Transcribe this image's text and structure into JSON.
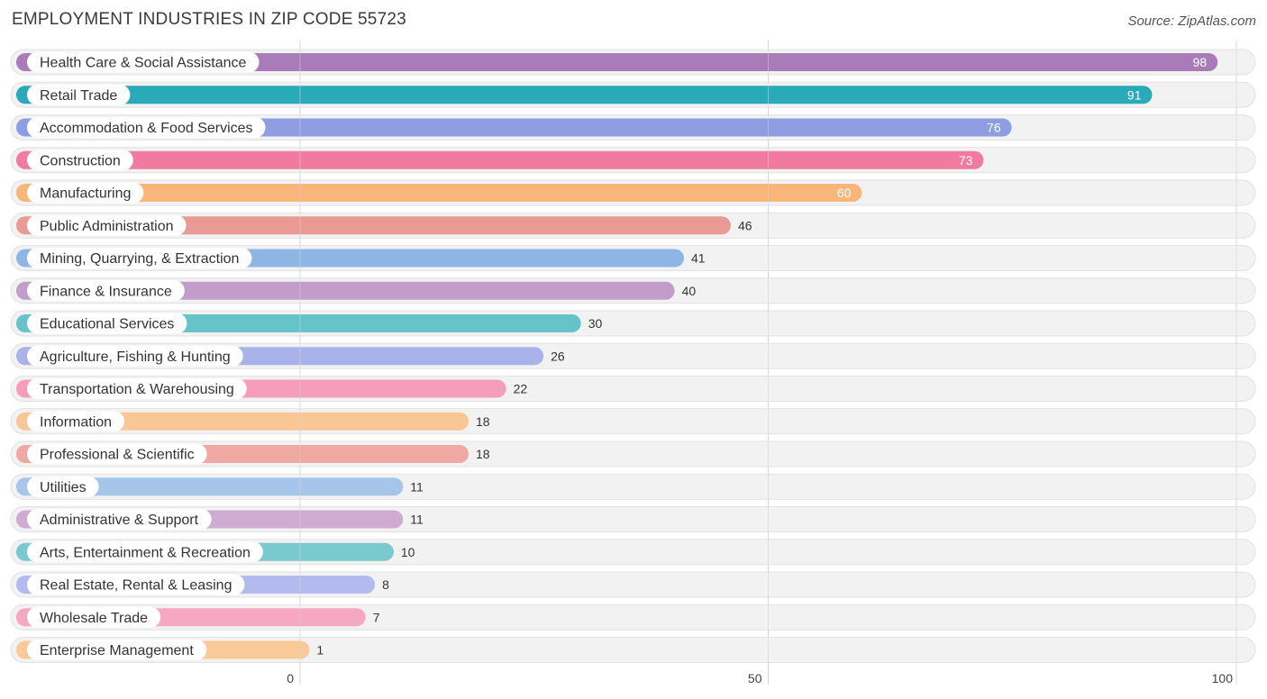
{
  "chart_data": {
    "type": "bar",
    "orientation": "horizontal",
    "title": "EMPLOYMENT INDUSTRIES IN ZIP CODE 55723",
    "source": "Source: ZipAtlas.com",
    "xlim": [
      0,
      100
    ],
    "xticks": [
      0,
      50,
      100
    ],
    "grid": true,
    "categories": [
      "Health Care & Social Assistance",
      "Retail Trade",
      "Accommodation & Food Services",
      "Construction",
      "Manufacturing",
      "Public Administration",
      "Mining, Quarrying, & Extraction",
      "Finance & Insurance",
      "Educational Services",
      "Agriculture, Fishing & Hunting",
      "Transportation & Warehousing",
      "Information",
      "Professional & Scientific",
      "Utilities",
      "Administrative & Support",
      "Arts, Entertainment & Recreation",
      "Real Estate, Rental & Leasing",
      "Wholesale Trade",
      "Enterprise Management"
    ],
    "values": [
      98,
      91,
      76,
      73,
      60,
      46,
      41,
      40,
      30,
      26,
      22,
      18,
      18,
      11,
      11,
      10,
      8,
      7,
      1
    ],
    "colors": [
      "#a97bb8",
      "#2aaab8",
      "#8f9de3",
      "#f07aa0",
      "#f8b67a",
      "#e99a95",
      "#8eb6e5",
      "#c39dc9",
      "#66c3c9",
      "#a9b3ea",
      "#f59db9",
      "#f9c796",
      "#efa8a2",
      "#a5c6ea",
      "#cfabd2",
      "#79c9cf",
      "#b3bbee",
      "#f6a7c2",
      "#f9c998"
    ]
  }
}
